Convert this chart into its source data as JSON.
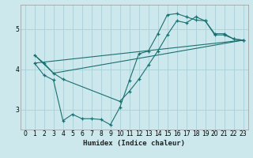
{
  "xlabel": "Humidex (Indice chaleur)",
  "ylabel": "",
  "background_color": "#cde8ec",
  "grid_color": "#aad0d8",
  "line_color": "#1a7070",
  "xlim": [
    -0.5,
    23.5
  ],
  "ylim": [
    2.5,
    5.6
  ],
  "yticks": [
    3,
    4,
    5
  ],
  "xticks": [
    0,
    1,
    2,
    3,
    4,
    5,
    6,
    7,
    8,
    9,
    10,
    11,
    12,
    13,
    14,
    15,
    16,
    17,
    18,
    19,
    20,
    21,
    22,
    23
  ],
  "series": [
    {
      "x": [
        1,
        2,
        3,
        4,
        10,
        11,
        12,
        13,
        14,
        15,
        16,
        17,
        18,
        19,
        20,
        21,
        22,
        23
      ],
      "y": [
        4.35,
        4.15,
        3.9,
        3.75,
        3.2,
        3.45,
        3.75,
        4.1,
        4.45,
        4.85,
        5.2,
        5.15,
        5.3,
        5.2,
        4.85,
        4.85,
        4.75,
        4.72
      ]
    },
    {
      "x": [
        1,
        2,
        3,
        4,
        5,
        6,
        7,
        8,
        9,
        10,
        11,
        12,
        13,
        14,
        15,
        16,
        17,
        18,
        19,
        20,
        21,
        22,
        23
      ],
      "y": [
        4.15,
        3.85,
        3.73,
        2.72,
        2.88,
        2.77,
        2.77,
        2.75,
        2.62,
        3.05,
        3.72,
        4.38,
        4.45,
        4.88,
        5.35,
        5.38,
        5.3,
        5.22,
        5.2,
        4.88,
        4.88,
        4.75,
        4.72
      ]
    },
    {
      "x": [
        1,
        3,
        23
      ],
      "y": [
        4.35,
        3.9,
        4.72
      ]
    },
    {
      "x": [
        1,
        23
      ],
      "y": [
        4.15,
        4.72
      ]
    }
  ]
}
